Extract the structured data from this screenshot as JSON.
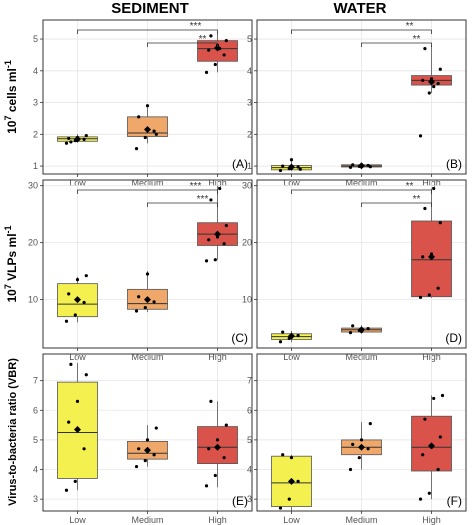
{
  "column_titles": [
    "SEDIMENT",
    "WATER"
  ],
  "row_ylabels": [
    {
      "prefix": "10",
      "exp": "7",
      "suffix": " cells ml",
      "suffix_exp": "-1"
    },
    {
      "prefix": "10",
      "exp": "7",
      "suffix": " VLPs ml",
      "suffix_exp": "-1"
    },
    {
      "prefix": "Virus-to-bacteria ratio (VBR)",
      "exp": "",
      "suffix": "",
      "suffix_exp": ""
    }
  ],
  "colors": {
    "Low": "#f3f04f",
    "Medium": "#efa86a",
    "High": "#d9534a",
    "grid": "#e6e6e6",
    "frame": "#333333"
  },
  "chart_data": [
    {
      "type": "boxplot",
      "panel_label": "(A)",
      "column": "SEDIMENT",
      "row": 0,
      "categories": [
        "Low",
        "Medium",
        "High"
      ],
      "ylim": [
        0.75,
        5.6
      ],
      "yticks": [
        1,
        2,
        3,
        4,
        5
      ],
      "boxes": [
        {
          "q1": 1.78,
          "median": 1.86,
          "q3": 1.92,
          "whisker_low": 1.75,
          "whisker_high": 2.0,
          "mean": 1.85,
          "points": [
            1.72,
            1.8,
            1.84,
            1.87,
            1.9,
            1.96,
            1.76
          ]
        },
        {
          "q1": 1.93,
          "median": 2.04,
          "q3": 2.55,
          "whisker_low": 1.72,
          "whisker_high": 2.85,
          "mean": 2.15,
          "points": [
            1.55,
            1.9,
            2.1,
            2.55,
            2.9,
            2.0
          ]
        },
        {
          "q1": 4.3,
          "median": 4.7,
          "q3": 4.95,
          "whisker_low": 3.95,
          "whisker_high": 5.2,
          "mean": 4.72,
          "points": [
            3.95,
            4.2,
            4.5,
            4.65,
            4.8,
            4.95,
            5.1,
            4.7
          ]
        }
      ],
      "significance": [
        {
          "from": "Low",
          "to": "High",
          "label": "***"
        },
        {
          "from": "Medium",
          "to": "High",
          "label": "**"
        }
      ]
    },
    {
      "type": "boxplot",
      "panel_label": "(B)",
      "column": "WATER",
      "row": 0,
      "categories": [
        "Low",
        "Medium",
        "High"
      ],
      "ylim": [
        0.75,
        5.6
      ],
      "yticks": [
        1,
        2,
        3,
        4,
        5
      ],
      "boxes": [
        {
          "q1": 0.88,
          "median": 0.95,
          "q3": 1.02,
          "whisker_low": 0.85,
          "whisker_high": 1.25,
          "mean": 0.97,
          "points": [
            0.86,
            0.92,
            0.97,
            1.0,
            1.2,
            0.9
          ]
        },
        {
          "q1": 0.97,
          "median": 1.0,
          "q3": 1.04,
          "whisker_low": 0.95,
          "whisker_high": 1.06,
          "mean": 1.01,
          "points": [
            0.96,
            0.99,
            1.02,
            1.04,
            1.0,
            0.98
          ]
        },
        {
          "q1": 3.55,
          "median": 3.7,
          "q3": 3.85,
          "whisker_low": 3.3,
          "whisker_high": 4.8,
          "mean": 3.65,
          "points": [
            1.95,
            3.3,
            3.6,
            3.7,
            3.75,
            4.05,
            4.7,
            3.5
          ]
        }
      ],
      "significance": [
        {
          "from": "Low",
          "to": "High",
          "label": "**"
        },
        {
          "from": "Medium",
          "to": "High",
          "label": "**"
        }
      ]
    },
    {
      "type": "boxplot",
      "panel_label": "(C)",
      "column": "SEDIMENT",
      "row": 1,
      "categories": [
        "Low",
        "Medium",
        "High"
      ],
      "ylim": [
        1.5,
        31
      ],
      "yticks": [
        10,
        20,
        30
      ],
      "boxes": [
        {
          "q1": 7.0,
          "median": 9.2,
          "q3": 12.8,
          "whisker_low": 6.0,
          "whisker_high": 14.0,
          "mean": 10.0,
          "points": [
            6.2,
            7.3,
            9.5,
            11.0,
            13.5,
            14.2
          ]
        },
        {
          "q1": 8.3,
          "median": 9.3,
          "q3": 11.8,
          "whisker_low": 7.8,
          "whisker_high": 15.0,
          "mean": 10.0,
          "points": [
            8.0,
            8.6,
            9.6,
            10.5,
            14.5
          ]
        },
        {
          "q1": 19.5,
          "median": 21.5,
          "q3": 23.5,
          "whisker_low": 17.0,
          "whisker_high": 30.0,
          "mean": 21.5,
          "points": [
            16.8,
            17.0,
            19.8,
            20.5,
            21.0,
            23.0,
            27.5,
            29.5
          ]
        }
      ],
      "significance": [
        {
          "from": "Low",
          "to": "High",
          "label": "***"
        },
        {
          "from": "Medium",
          "to": "High",
          "label": "***"
        }
      ]
    },
    {
      "type": "boxplot",
      "panel_label": "(D)",
      "column": "WATER",
      "row": 1,
      "categories": [
        "Low",
        "Medium",
        "High"
      ],
      "ylim": [
        1.5,
        31
      ],
      "yticks": [
        10,
        20,
        30
      ],
      "boxes": [
        {
          "q1": 3.0,
          "median": 3.5,
          "q3": 4.0,
          "whisker_low": 2.5,
          "whisker_high": 4.5,
          "mean": 3.6,
          "points": [
            2.6,
            3.2,
            3.7,
            4.3,
            3.4
          ]
        },
        {
          "q1": 4.3,
          "median": 4.7,
          "q3": 5.0,
          "whisker_low": 4.0,
          "whisker_high": 5.5,
          "mean": 4.7,
          "points": [
            4.2,
            4.6,
            4.9,
            5.4,
            4.4
          ]
        },
        {
          "q1": 10.5,
          "median": 17.0,
          "q3": 23.8,
          "whisker_low": 10.3,
          "whisker_high": 29.5,
          "mean": 17.5,
          "points": [
            10.4,
            10.8,
            12.0,
            17.5,
            18.0,
            23.5,
            26.0,
            29.5
          ]
        }
      ],
      "significance": [
        {
          "from": "Low",
          "to": "High",
          "label": "**"
        },
        {
          "from": "Medium",
          "to": "High",
          "label": "**"
        }
      ]
    },
    {
      "type": "boxplot",
      "panel_label": "(E)",
      "column": "SEDIMENT",
      "row": 2,
      "categories": [
        "Low",
        "Medium",
        "High"
      ],
      "ylim": [
        2.6,
        7.9
      ],
      "yticks": [
        3,
        4,
        5,
        6,
        7
      ],
      "boxes": [
        {
          "q1": 3.7,
          "median": 5.25,
          "q3": 6.95,
          "whisker_low": 3.3,
          "whisker_high": 7.6,
          "mean": 5.35,
          "points": [
            3.3,
            3.6,
            4.7,
            5.6,
            6.3,
            7.2,
            7.55
          ]
        },
        {
          "q1": 4.35,
          "median": 4.55,
          "q3": 4.95,
          "whisker_low": 4.1,
          "whisker_high": 5.5,
          "mean": 4.65,
          "points": [
            4.1,
            4.3,
            4.5,
            4.7,
            5.0,
            5.4
          ]
        },
        {
          "q1": 4.2,
          "median": 4.75,
          "q3": 5.45,
          "whisker_low": 3.4,
          "whisker_high": 6.3,
          "mean": 4.75,
          "points": [
            3.45,
            3.8,
            4.4,
            4.7,
            5.0,
            5.5,
            6.3
          ]
        }
      ],
      "significance": []
    },
    {
      "type": "boxplot",
      "panel_label": "(F)",
      "column": "WATER",
      "row": 2,
      "categories": [
        "Low",
        "Medium",
        "High"
      ],
      "ylim": [
        2.6,
        7.9
      ],
      "yticks": [
        3,
        4,
        5,
        6,
        7
      ],
      "boxes": [
        {
          "q1": 2.75,
          "median": 3.55,
          "q3": 4.45,
          "whisker_low": 2.6,
          "whisker_high": 4.5,
          "mean": 3.6,
          "points": [
            2.7,
            3.0,
            3.6,
            4.5,
            4.4
          ]
        },
        {
          "q1": 4.5,
          "median": 4.75,
          "q3": 5.0,
          "whisker_low": 4.0,
          "whisker_high": 5.6,
          "mean": 4.75,
          "points": [
            4.0,
            4.4,
            4.7,
            4.85,
            5.0,
            5.55
          ]
        },
        {
          "q1": 3.95,
          "median": 4.75,
          "q3": 5.8,
          "whisker_low": 3.0,
          "whisker_high": 6.5,
          "mean": 4.8,
          "points": [
            3.0,
            3.2,
            4.0,
            4.5,
            4.75,
            5.1,
            5.7,
            6.4,
            6.5
          ]
        }
      ],
      "significance": []
    }
  ]
}
